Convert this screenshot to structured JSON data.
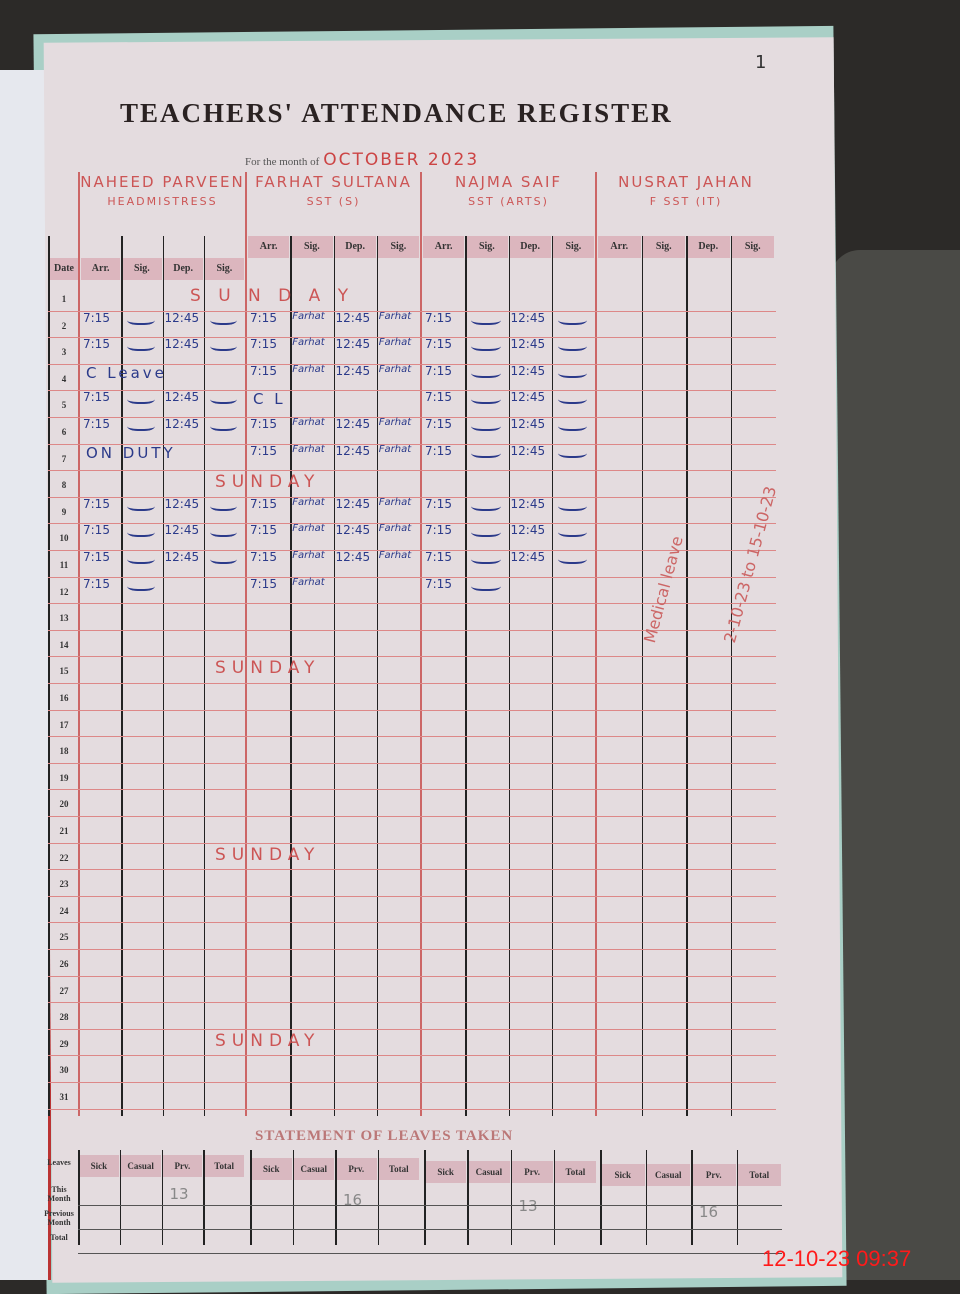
{
  "register": {
    "title": "TEACHERS' ATTENDANCE REGISTER",
    "month_label": "For the month of",
    "month_value": "OCTOBER 2023",
    "page_number": "1"
  },
  "columns": {
    "date": "Date",
    "arr": "Arr.",
    "sig": "Sig.",
    "dep": "Dep."
  },
  "teachers": [
    {
      "name": "NAHEED PARVEEN",
      "subtitle": "HEADMISTRESS"
    },
    {
      "name": "FARHAT SULTANA",
      "subtitle": "SST (S)"
    },
    {
      "name": "NAJMA SAIF",
      "subtitle": "SST (ARTS)"
    },
    {
      "name": "NUSRAT JAHAN",
      "subtitle": "F SST (IT)"
    }
  ],
  "days": [
    "1",
    "2",
    "3",
    "4",
    "5",
    "6",
    "7",
    "8",
    "9",
    "10",
    "11",
    "12",
    "13",
    "14",
    "15",
    "16",
    "17",
    "18",
    "19",
    "20",
    "21",
    "22",
    "23",
    "24",
    "25",
    "26",
    "27",
    "28",
    "29",
    "30",
    "31"
  ],
  "row_notes": [
    {
      "day": 1,
      "text": "S U N D A Y"
    },
    {
      "day": 8,
      "text": "SUNDAY"
    },
    {
      "day": 15,
      "text": "SUNDAY"
    },
    {
      "day": 22,
      "text": "SUNDAY"
    },
    {
      "day": 29,
      "text": "SUNDAY"
    }
  ],
  "entries": [
    {
      "teacher": 0,
      "day": 2,
      "arr": "7:15",
      "dep": "12:45",
      "sig": true
    },
    {
      "teacher": 0,
      "day": 3,
      "arr": "7:15",
      "dep": "12:45",
      "sig": true
    },
    {
      "teacher": 0,
      "day": 4,
      "note": "C Leave"
    },
    {
      "teacher": 0,
      "day": 5,
      "arr": "7:15",
      "dep": "12:45",
      "sig": true
    },
    {
      "teacher": 0,
      "day": 6,
      "arr": "7:15",
      "dep": "12:45",
      "sig": true
    },
    {
      "teacher": 0,
      "day": 7,
      "note": "ON DUTY"
    },
    {
      "teacher": 0,
      "day": 9,
      "arr": "7:15",
      "dep": "12:45",
      "sig": true
    },
    {
      "teacher": 0,
      "day": 10,
      "arr": "7:15",
      "dep": "12:45",
      "sig": true
    },
    {
      "teacher": 0,
      "day": 11,
      "arr": "7:15",
      "dep": "12:45",
      "sig": true
    },
    {
      "teacher": 0,
      "day": 12,
      "arr": "7:15",
      "sig": true
    },
    {
      "teacher": 1,
      "day": 2,
      "arr": "7:15",
      "sig_text": "Farhat",
      "dep": "12:45"
    },
    {
      "teacher": 1,
      "day": 3,
      "arr": "7:15",
      "sig_text": "Farhat",
      "dep": "12:45"
    },
    {
      "teacher": 1,
      "day": 4,
      "arr": "7:15",
      "sig_text": "Farhat",
      "dep": "12:45"
    },
    {
      "teacher": 1,
      "day": 5,
      "note": "C L"
    },
    {
      "teacher": 1,
      "day": 6,
      "arr": "7:15",
      "sig_text": "Farhat",
      "dep": "12:45"
    },
    {
      "teacher": 1,
      "day": 7,
      "arr": "7:15",
      "sig_text": "Farhat",
      "dep": "12:45"
    },
    {
      "teacher": 1,
      "day": 9,
      "arr": "7:15",
      "sig_text": "Farhat",
      "dep": "12:45"
    },
    {
      "teacher": 1,
      "day": 10,
      "arr": "7:15",
      "sig_text": "Farhat",
      "dep": "12:45"
    },
    {
      "teacher": 1,
      "day": 11,
      "arr": "7:15",
      "sig_text": "Farhat",
      "dep": "12:45"
    },
    {
      "teacher": 1,
      "day": 12,
      "arr": "7:15",
      "sig_text": "Farhat"
    },
    {
      "teacher": 2,
      "day": 2,
      "arr": "7:15",
      "dep": "12:45",
      "sig": true
    },
    {
      "teacher": 2,
      "day": 3,
      "arr": "7:15",
      "dep": "12:45",
      "sig": true
    },
    {
      "teacher": 2,
      "day": 4,
      "arr": "7:15",
      "dep": "12:45",
      "sig": true
    },
    {
      "teacher": 2,
      "day": 5,
      "arr": "7:15",
      "dep": "12:45",
      "sig": true
    },
    {
      "teacher": 2,
      "day": 6,
      "arr": "7:15",
      "dep": "12:45",
      "sig": true
    },
    {
      "teacher": 2,
      "day": 7,
      "arr": "7:15",
      "dep": "12:45",
      "sig": true
    },
    {
      "teacher": 2,
      "day": 9,
      "arr": "7:15",
      "dep": "12:45",
      "sig": true
    },
    {
      "teacher": 2,
      "day": 10,
      "arr": "7:15",
      "dep": "12:45",
      "sig": true
    },
    {
      "teacher": 2,
      "day": 11,
      "arr": "7:15",
      "dep": "12:45",
      "sig": true
    },
    {
      "teacher": 2,
      "day": 12,
      "arr": "7:15",
      "sig": true
    }
  ],
  "teacher4_notes": [
    "Medical leave",
    "2-10-23 to 15-10-23"
  ],
  "leaves": {
    "title": "STATEMENT OF LEAVES TAKEN",
    "row_header": "Leaves",
    "row_labels": [
      "This Month",
      "Previous Month",
      "Total"
    ],
    "columns": [
      "Sick",
      "Casual",
      "Prv.",
      "Total"
    ],
    "prv_values": [
      "13",
      "16",
      "13",
      "16"
    ]
  },
  "camera_timestamp": "12-10-23  09:37",
  "colors": {
    "ink_blue": "#2b3a8a",
    "ink_red": "#c55",
    "stamp": "#ff1a1a"
  }
}
